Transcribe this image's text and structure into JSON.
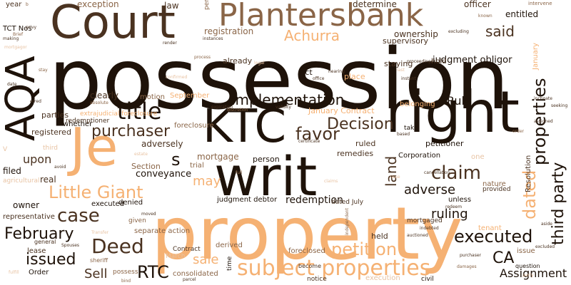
{
  "words": [
    "possession",
    "property",
    "writ",
    "right",
    "KTC",
    "Je",
    "Court",
    "AQA",
    "Plantersbank",
    "title",
    "subject properties",
    "Deed",
    "petition",
    "executed",
    "purchaser",
    "claim",
    "Little Giant",
    "Decision",
    "favor",
    "case",
    "February",
    "issued",
    "implementation",
    "properties",
    "dated",
    "third party",
    "RTC",
    "CA",
    "adverse",
    "ruling",
    "said",
    "Achurra",
    "land",
    "judgment obligor",
    "Sell",
    "Assignment",
    "sale",
    "s",
    "may",
    "redemption",
    "conveyance",
    "Rule",
    "upon",
    "registration",
    "ownership",
    "determine",
    "law",
    "exception",
    "period",
    "entitled",
    "officer",
    "intervene",
    "year",
    "TCT Nos",
    "already",
    "supervisory",
    "hold",
    "staying",
    "January Contract",
    "mortgage",
    "person",
    "remedies",
    "adversely",
    "Section",
    "trial",
    "owner",
    "real",
    "filed",
    "registered",
    "whether",
    "redemptioner",
    "foreclosure",
    "clearly",
    "motion",
    "September",
    "Act",
    "place",
    "January",
    "nature",
    "unless",
    "petitioner",
    "ruled",
    "Corporation",
    "Resolution",
    "tenant",
    "held",
    "issue",
    "executed",
    "denied",
    "judgment debtor",
    "dated July",
    "separate action",
    "lease",
    "Contract",
    "foreclosed",
    "derived",
    "time",
    "Order",
    "sheriff",
    "consolidated",
    "given",
    "mortgaged",
    "representative",
    "agricultural",
    "general",
    "one",
    "provided",
    "question",
    "civil",
    "notice",
    "execution",
    "possess",
    "March",
    "become",
    "extrajudicial foreclosure",
    "parties",
    "third",
    "take",
    "V",
    "b",
    "privy",
    "Brief",
    "mortgagor",
    "making",
    "stay",
    "erred",
    "estate",
    "Spouses",
    "Transfer",
    "damages",
    "inchoate",
    "seeking",
    "known",
    "excluding",
    "render",
    "instances",
    "process",
    "legal",
    "confirmed",
    "office",
    "hearing",
    "instant",
    "last",
    "certificate",
    "based",
    "validity",
    "discretion",
    "independent",
    "cancellation",
    "moved",
    "parcel",
    "bind",
    "belonging",
    "absolute",
    "expiration",
    "redeem",
    "excluded",
    "aside",
    "party",
    "fulfill",
    "avoid",
    "date",
    "full",
    "indebted",
    "auctioned",
    "purchaser",
    "claims",
    "raise",
    "proceedings",
    "assigned",
    "order",
    "claim"
  ],
  "colors": {
    "dark": "#1e1209",
    "brown": "#4a3220",
    "tan": "#8a6547",
    "orange": "#f5b173",
    "peach": "#e8c3a3"
  }
}
